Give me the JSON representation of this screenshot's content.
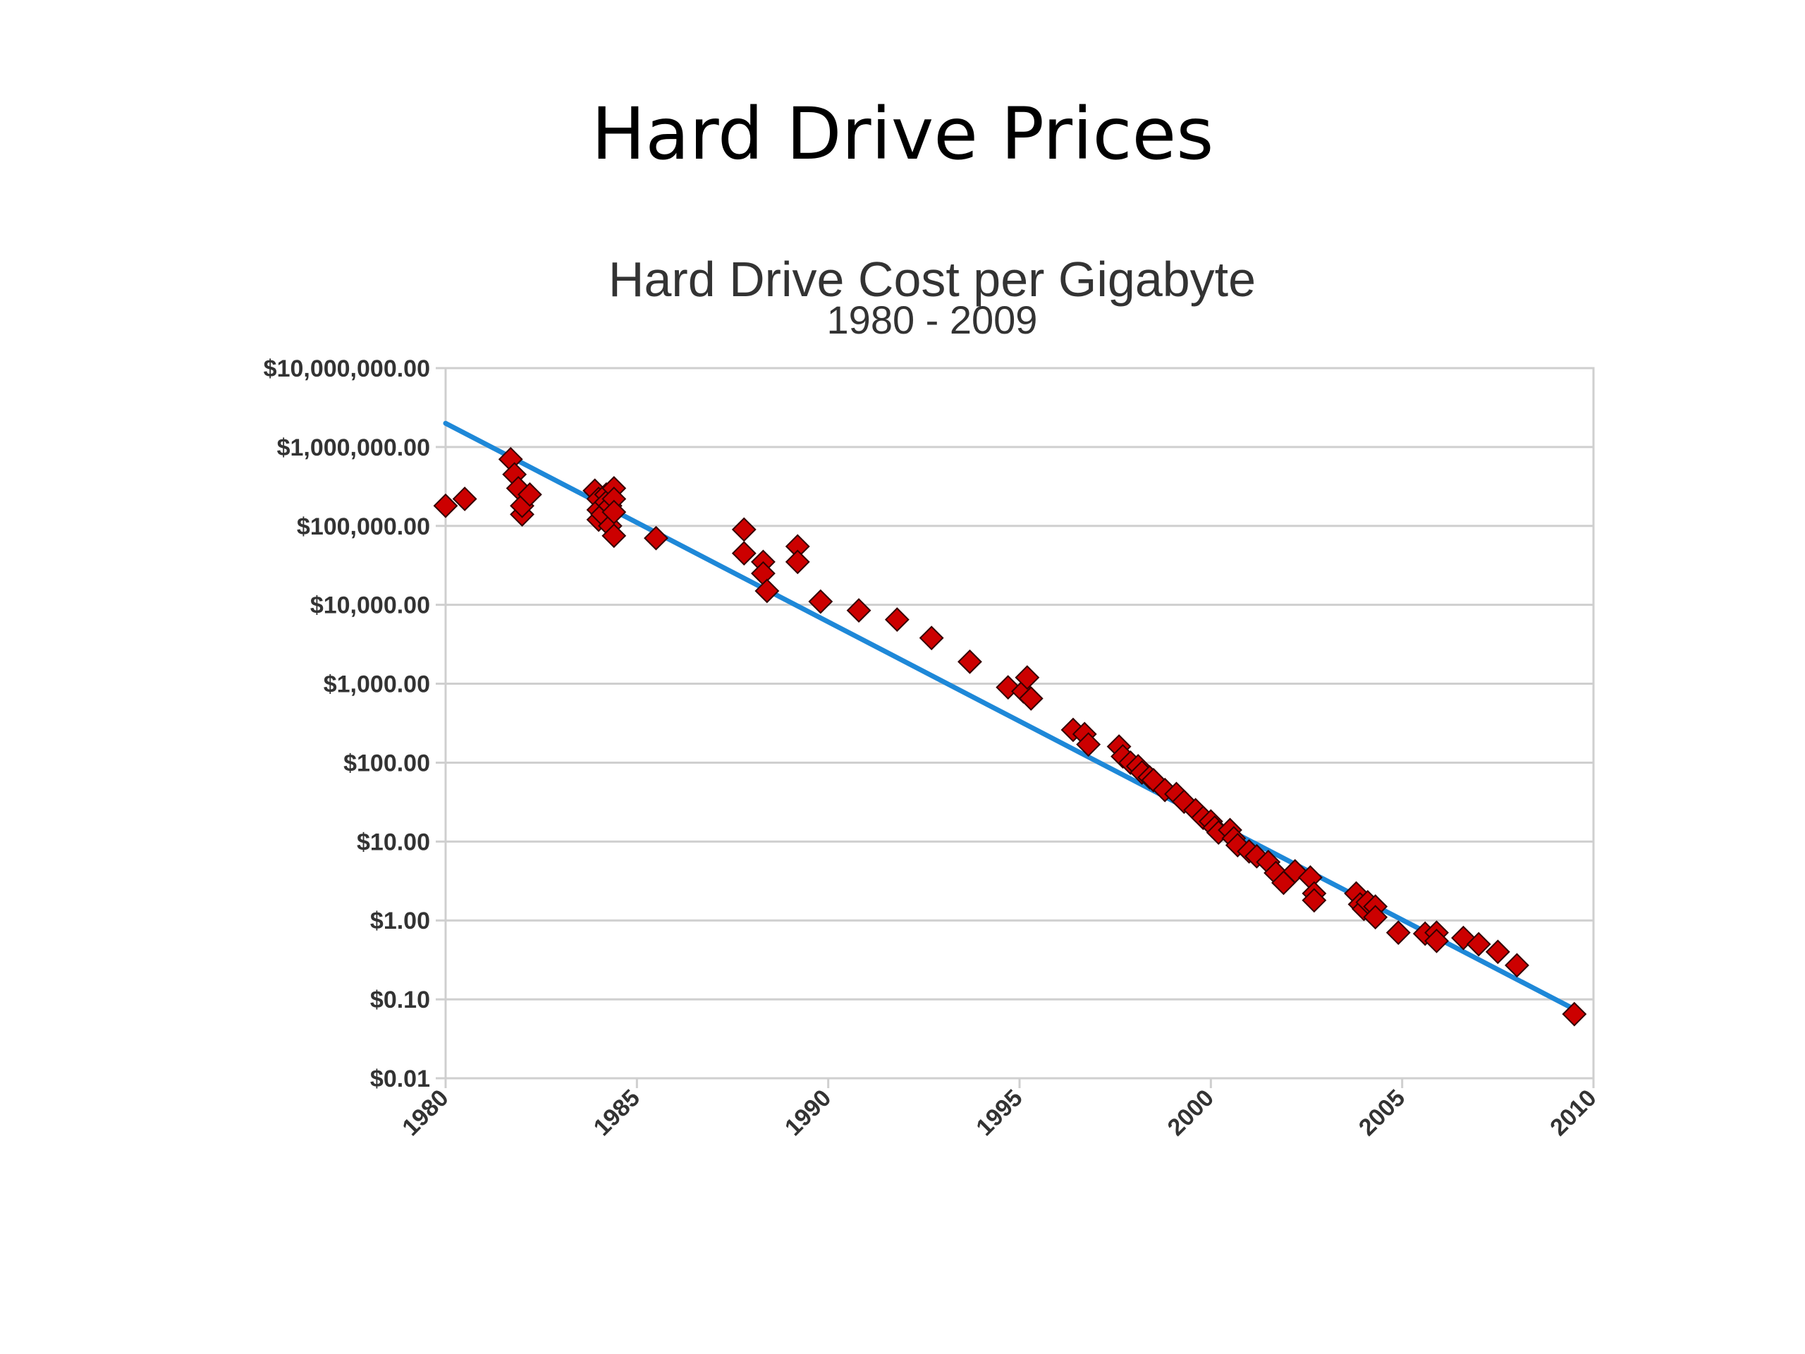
{
  "slide": {
    "title": "Hard Drive Prices"
  },
  "chart_data": {
    "type": "scatter",
    "title": "Hard Drive Cost per Gigabyte",
    "subtitle": "1980 - 2009",
    "xlabel": "",
    "ylabel": "",
    "y_scale": "log",
    "xlim": [
      1980,
      2010
    ],
    "ylim": [
      0.01,
      10000000
    ],
    "x_ticks": [
      "1980",
      "1985",
      "1990",
      "1995",
      "2000",
      "2005",
      "2010"
    ],
    "y_ticks": [
      "$10,000,000.00",
      "$1,000,000.00",
      "$100,000.00",
      "$10,000.00",
      "$1,000.00",
      "$100.00",
      "$10.00",
      "$1.00",
      "$0.10",
      "$0.01"
    ],
    "grid": true,
    "legend": "none",
    "colors": {
      "points": "#cc0000",
      "point_outline": "#330000",
      "trend": "#1e88d8",
      "grid": "#cfcfcf"
    },
    "trend_line": {
      "x": [
        1980,
        2009.5
      ],
      "y": [
        2000000,
        0.075
      ]
    },
    "series": [
      {
        "points": [
          [
            1980.0,
            180000
          ],
          [
            1980.5,
            220000
          ],
          [
            1981.7,
            700000
          ],
          [
            1981.8,
            450000
          ],
          [
            1981.9,
            300000
          ],
          [
            1982.0,
            140000
          ],
          [
            1982.0,
            180000
          ],
          [
            1982.2,
            250000
          ],
          [
            1983.9,
            280000
          ],
          [
            1984.0,
            220000
          ],
          [
            1984.0,
            160000
          ],
          [
            1984.0,
            120000
          ],
          [
            1984.1,
            140000
          ],
          [
            1984.2,
            250000
          ],
          [
            1984.2,
            200000
          ],
          [
            1984.3,
            180000
          ],
          [
            1984.3,
            100000
          ],
          [
            1984.4,
            300000
          ],
          [
            1984.4,
            220000
          ],
          [
            1984.4,
            150000
          ],
          [
            1984.4,
            75000
          ],
          [
            1985.5,
            70000
          ],
          [
            1987.8,
            90000
          ],
          [
            1987.8,
            45000
          ],
          [
            1988.3,
            35000
          ],
          [
            1988.3,
            25000
          ],
          [
            1988.4,
            15000
          ],
          [
            1989.2,
            55000
          ],
          [
            1989.2,
            35000
          ],
          [
            1989.8,
            11000
          ],
          [
            1990.8,
            8500
          ],
          [
            1991.8,
            6500
          ],
          [
            1992.7,
            3800
          ],
          [
            1993.7,
            1900
          ],
          [
            1994.7,
            900
          ],
          [
            1995.1,
            800
          ],
          [
            1995.2,
            1200
          ],
          [
            1995.3,
            650
          ],
          [
            1996.4,
            260
          ],
          [
            1996.7,
            230
          ],
          [
            1996.8,
            170
          ],
          [
            1997.6,
            160
          ],
          [
            1997.7,
            120
          ],
          [
            1997.9,
            100
          ],
          [
            1998.1,
            90
          ],
          [
            1998.2,
            75
          ],
          [
            1998.4,
            65
          ],
          [
            1998.5,
            60
          ],
          [
            1998.8,
            45
          ],
          [
            1999.1,
            40
          ],
          [
            1999.3,
            32
          ],
          [
            1999.6,
            25
          ],
          [
            1999.8,
            20
          ],
          [
            2000.0,
            18
          ],
          [
            2000.1,
            15
          ],
          [
            2000.2,
            13
          ],
          [
            2000.5,
            14
          ],
          [
            2000.6,
            11
          ],
          [
            2000.7,
            9
          ],
          [
            2001.0,
            7.5
          ],
          [
            2001.2,
            6.5
          ],
          [
            2001.5,
            5.5
          ],
          [
            2001.7,
            4
          ],
          [
            2001.9,
            3
          ],
          [
            2002.2,
            4.2
          ],
          [
            2002.6,
            3.5
          ],
          [
            2002.7,
            2.2
          ],
          [
            2002.7,
            1.8
          ],
          [
            2003.8,
            2.2
          ],
          [
            2003.9,
            1.6
          ],
          [
            2004.0,
            1.4
          ],
          [
            2004.1,
            1.7
          ],
          [
            2004.3,
            1.5
          ],
          [
            2004.3,
            1.1
          ],
          [
            2004.9,
            0.7
          ],
          [
            2005.6,
            0.68
          ],
          [
            2005.9,
            0.7
          ],
          [
            2005.9,
            0.55
          ],
          [
            2006.6,
            0.6
          ],
          [
            2007.0,
            0.5
          ],
          [
            2007.5,
            0.4
          ],
          [
            2008.0,
            0.27
          ],
          [
            2009.5,
            0.065
          ]
        ]
      }
    ]
  }
}
